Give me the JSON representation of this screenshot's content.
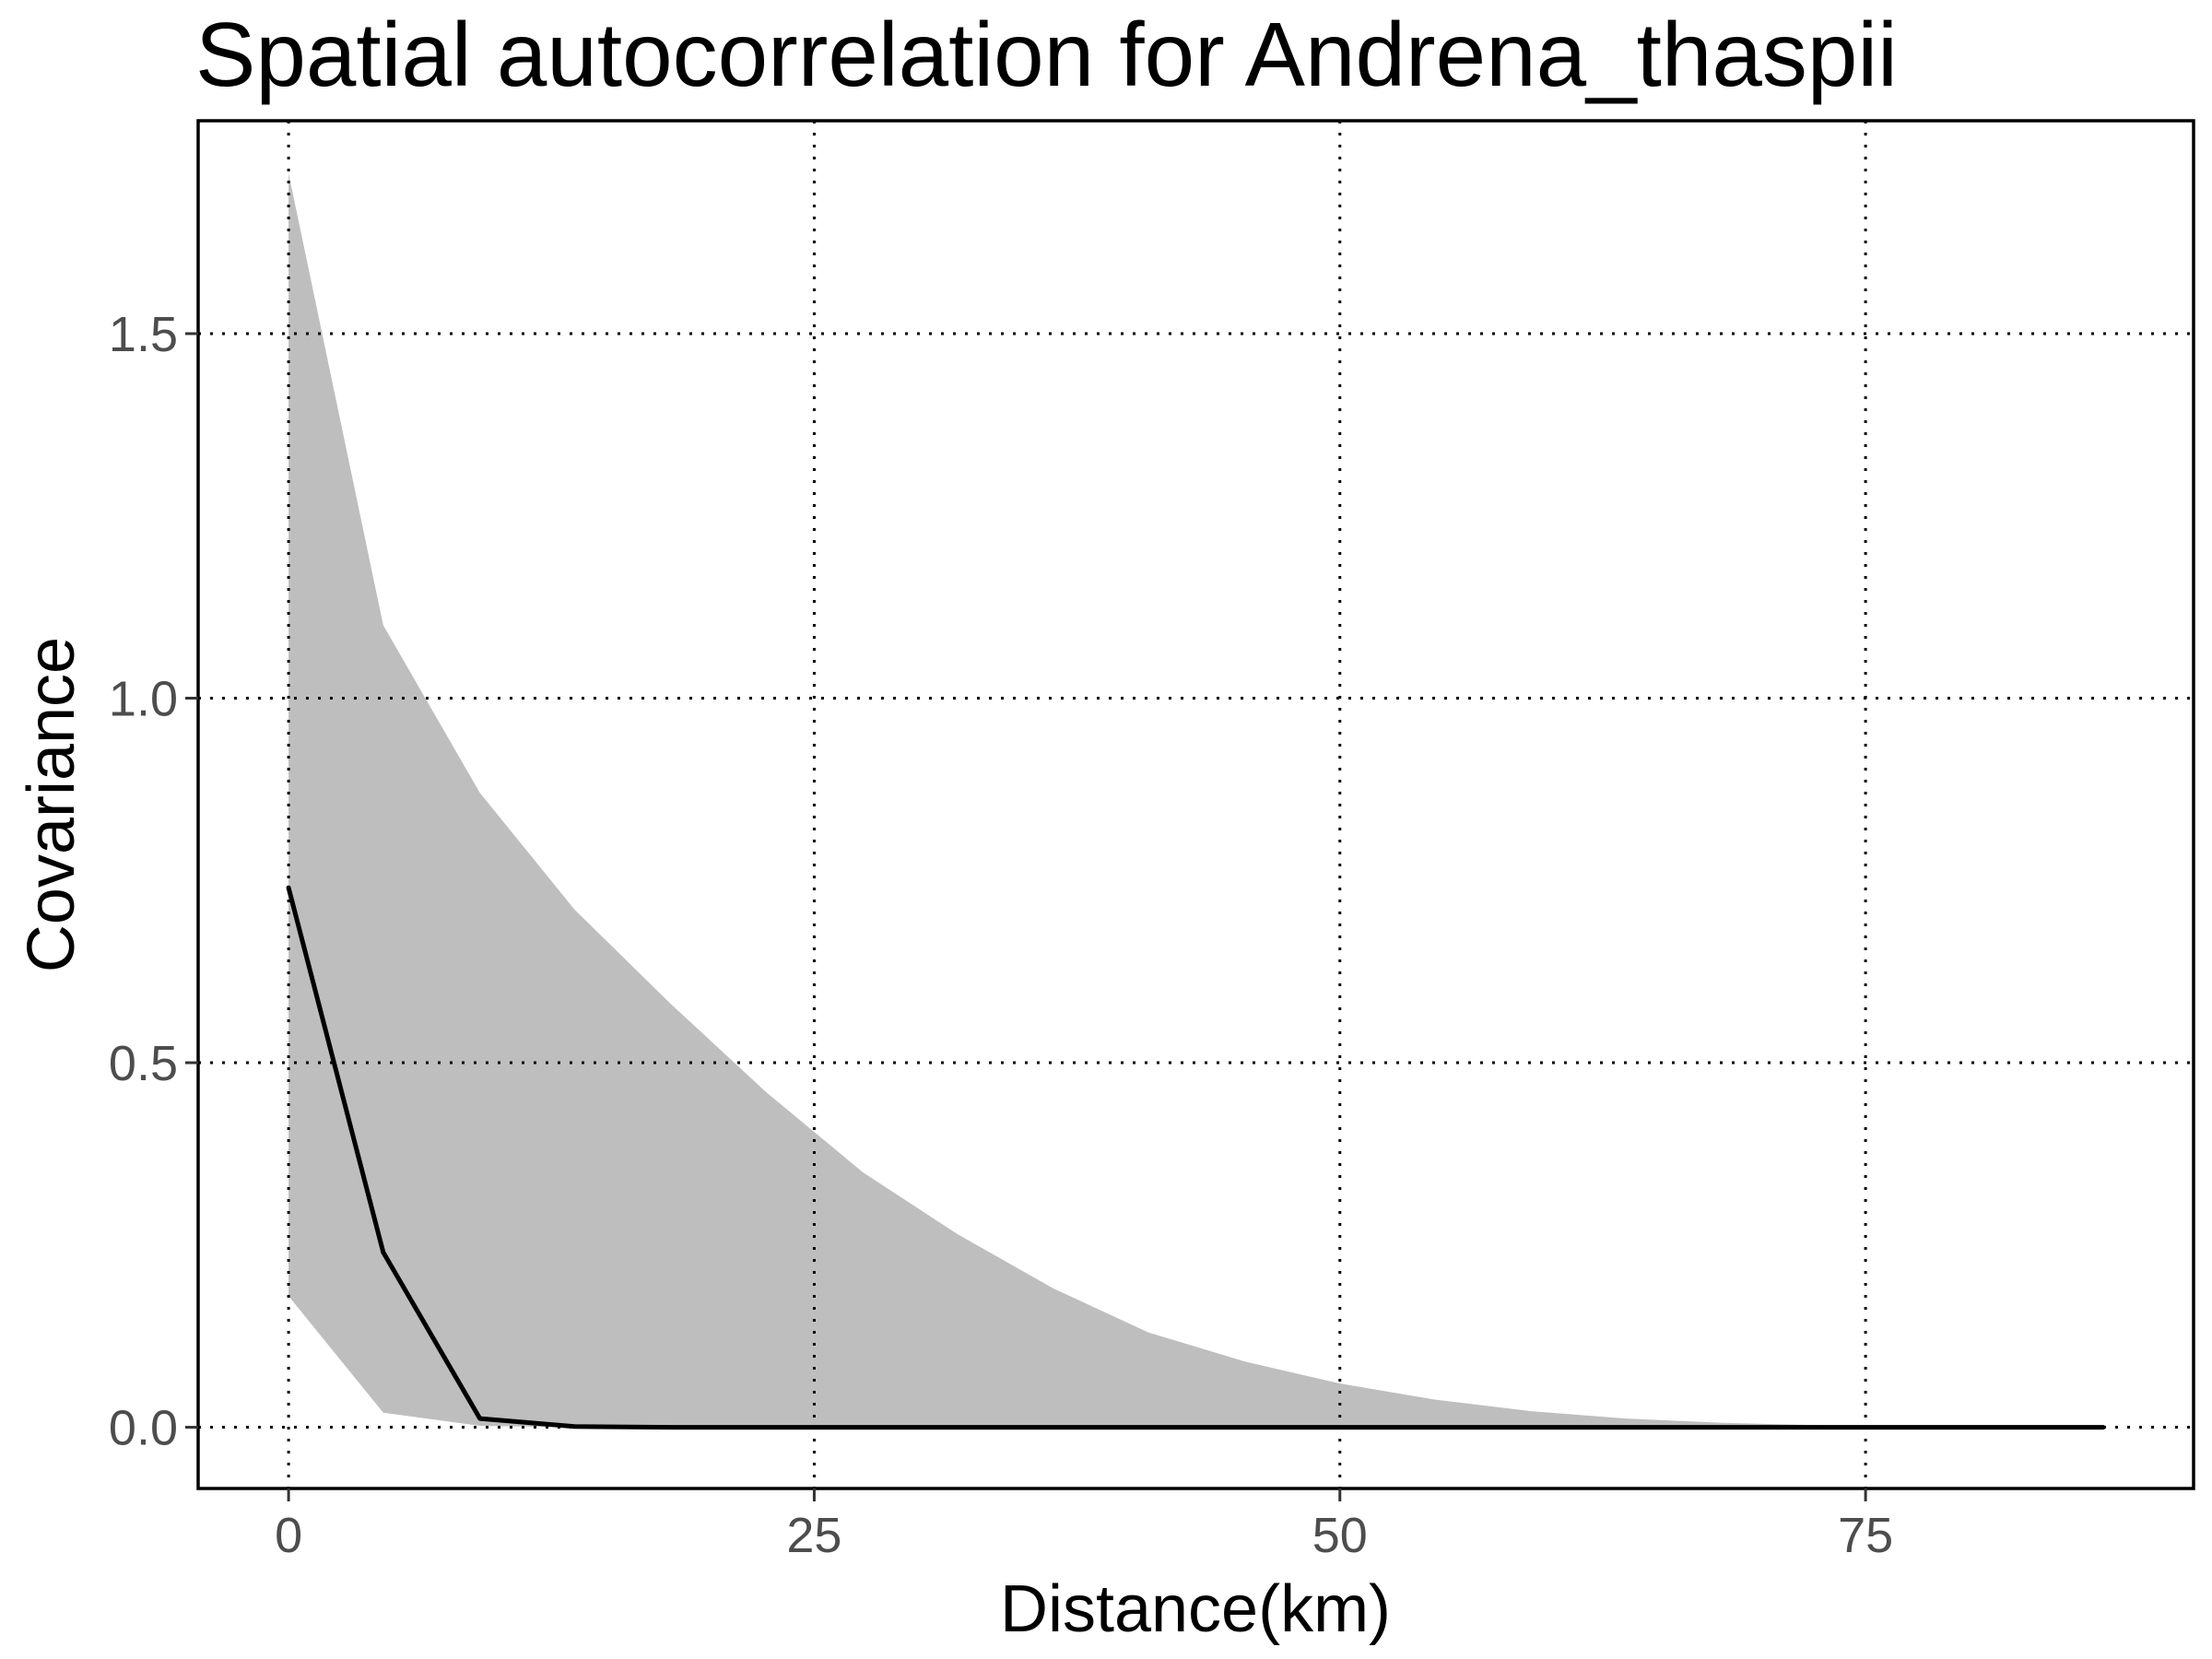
{
  "chart_data": {
    "type": "area",
    "title": "Spatial autocorrelation for Andrena_thaspii",
    "xlabel": "Distance(km)",
    "ylabel": "Covariance",
    "xlim": [
      -4.3,
      90.6
    ],
    "ylim": [
      -0.084,
      1.792
    ],
    "x_ticks": [
      0,
      25,
      50,
      75
    ],
    "x_tick_labels": [
      "0",
      "25",
      "50",
      "75"
    ],
    "y_ticks": [
      0.0,
      0.5,
      1.0,
      1.5
    ],
    "y_tick_labels": [
      "0.0",
      "0.5",
      "1.0",
      "1.5"
    ],
    "grid": "major, dotted",
    "legend": "none",
    "colors": {
      "ribbon": "#bebebe",
      "line": "#000000",
      "grid": "#000000",
      "border": "#000000"
    },
    "series": [
      {
        "kind": "line",
        "x": [
          0,
          4.5,
          9.1,
          13.6,
          18.2,
          22.7,
          27.3,
          31.8,
          36.4,
          40.9,
          45.5,
          50,
          54.5,
          59.1,
          63.6,
          68.2,
          72.7,
          77.3,
          81.8,
          86.3
        ],
        "y": [
          0.74,
          0.24,
          0.012,
          0.001,
          0,
          0,
          0,
          0,
          0,
          0,
          0,
          0,
          0,
          0,
          0,
          0,
          0,
          0,
          0,
          0
        ]
      },
      {
        "kind": "ribbon",
        "x": [
          0,
          4.5,
          9.1,
          13.6,
          18.2,
          22.7,
          27.3,
          31.8,
          36.4,
          40.9,
          45.5,
          50,
          54.5,
          59.1,
          63.6,
          68.2,
          72.7,
          77.3,
          81.8,
          86.3
        ],
        "upper": [
          1.72,
          1.1,
          0.87,
          0.71,
          0.58,
          0.46,
          0.35,
          0.265,
          0.19,
          0.13,
          0.09,
          0.06,
          0.038,
          0.022,
          0.012,
          0.006,
          0.003,
          0.0015,
          0.0008,
          0.0004
        ],
        "lower": [
          0.18,
          0.02,
          0.002,
          0,
          0,
          0,
          0,
          0,
          0,
          0,
          0,
          0,
          0,
          0,
          0,
          0,
          0,
          0,
          0,
          0
        ]
      }
    ]
  }
}
